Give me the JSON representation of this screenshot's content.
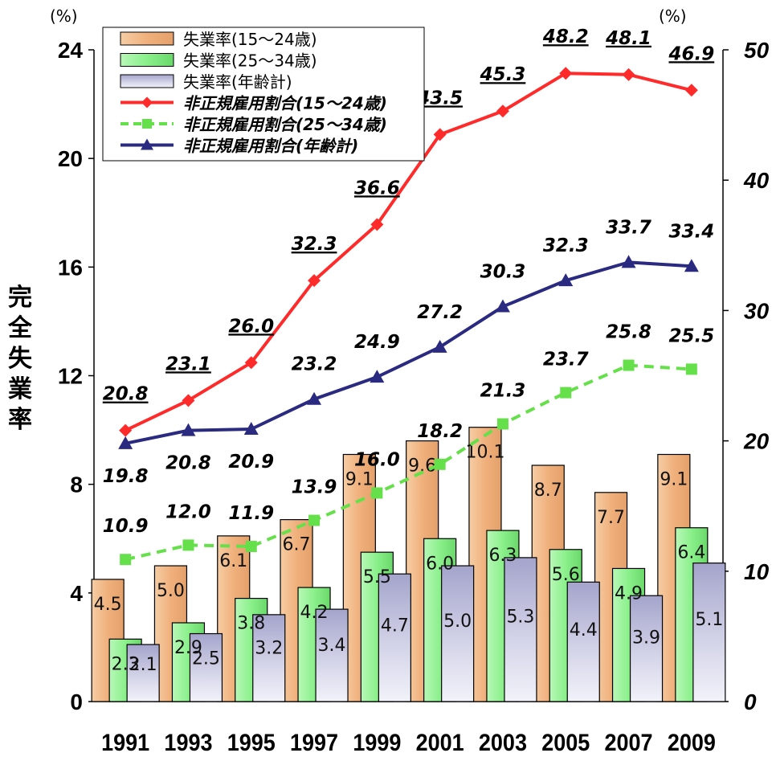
{
  "chart_data": {
    "type": "bar+line",
    "units": {
      "left": "(%)",
      "right": "(%)"
    },
    "ylabel": "完全失業率",
    "ylim_left": [
      0,
      24
    ],
    "yticks_left": [
      "0",
      "4",
      "8",
      "12",
      "16",
      "20",
      "24"
    ],
    "ylim_right": [
      0,
      50
    ],
    "yticks_right": [
      "0",
      "10",
      "20",
      "30",
      "40",
      "50"
    ],
    "categories": [
      "1991",
      "1993",
      "1995",
      "1997",
      "1999",
      "2001",
      "2003",
      "2005",
      "2007",
      "2009"
    ],
    "bar_series": [
      {
        "name": "失業率(15～24歳)",
        "color": "#f0b98a",
        "values": [
          4.5,
          5.0,
          6.1,
          6.7,
          9.1,
          9.6,
          10.1,
          8.7,
          7.7,
          9.1
        ]
      },
      {
        "name": "失業率(25～34歳)",
        "color": "#8ef08e",
        "values": [
          2.3,
          2.9,
          3.8,
          4.2,
          5.5,
          6.0,
          6.3,
          5.6,
          4.9,
          6.4
        ]
      },
      {
        "name": "失業率(年齢計)",
        "color": "#b4b4d8",
        "values": [
          2.1,
          2.5,
          3.2,
          3.4,
          4.7,
          5.0,
          5.3,
          4.4,
          3.9,
          5.1
        ]
      }
    ],
    "line_series": [
      {
        "name": "非正規雇用割合(15～24歳)",
        "color": "#ff2a2a",
        "marker": "diamond",
        "values": [
          20.8,
          23.1,
          26.0,
          32.3,
          36.6,
          43.5,
          45.3,
          48.2,
          48.1,
          46.9
        ]
      },
      {
        "name": "非正規雇用割合(25～34歳)",
        "color": "#66e04a",
        "marker": "square",
        "dashed": true,
        "values": [
          10.9,
          12.0,
          11.9,
          13.9,
          16.0,
          18.2,
          21.3,
          23.7,
          25.8,
          25.5
        ]
      },
      {
        "name": "非正規雇用割合(年齢計)",
        "color": "#2a2a80",
        "marker": "triangle",
        "values": [
          19.8,
          20.8,
          20.9,
          23.2,
          24.9,
          27.2,
          30.3,
          32.3,
          33.7,
          33.4
        ]
      }
    ],
    "legend_placement": "top-left"
  }
}
